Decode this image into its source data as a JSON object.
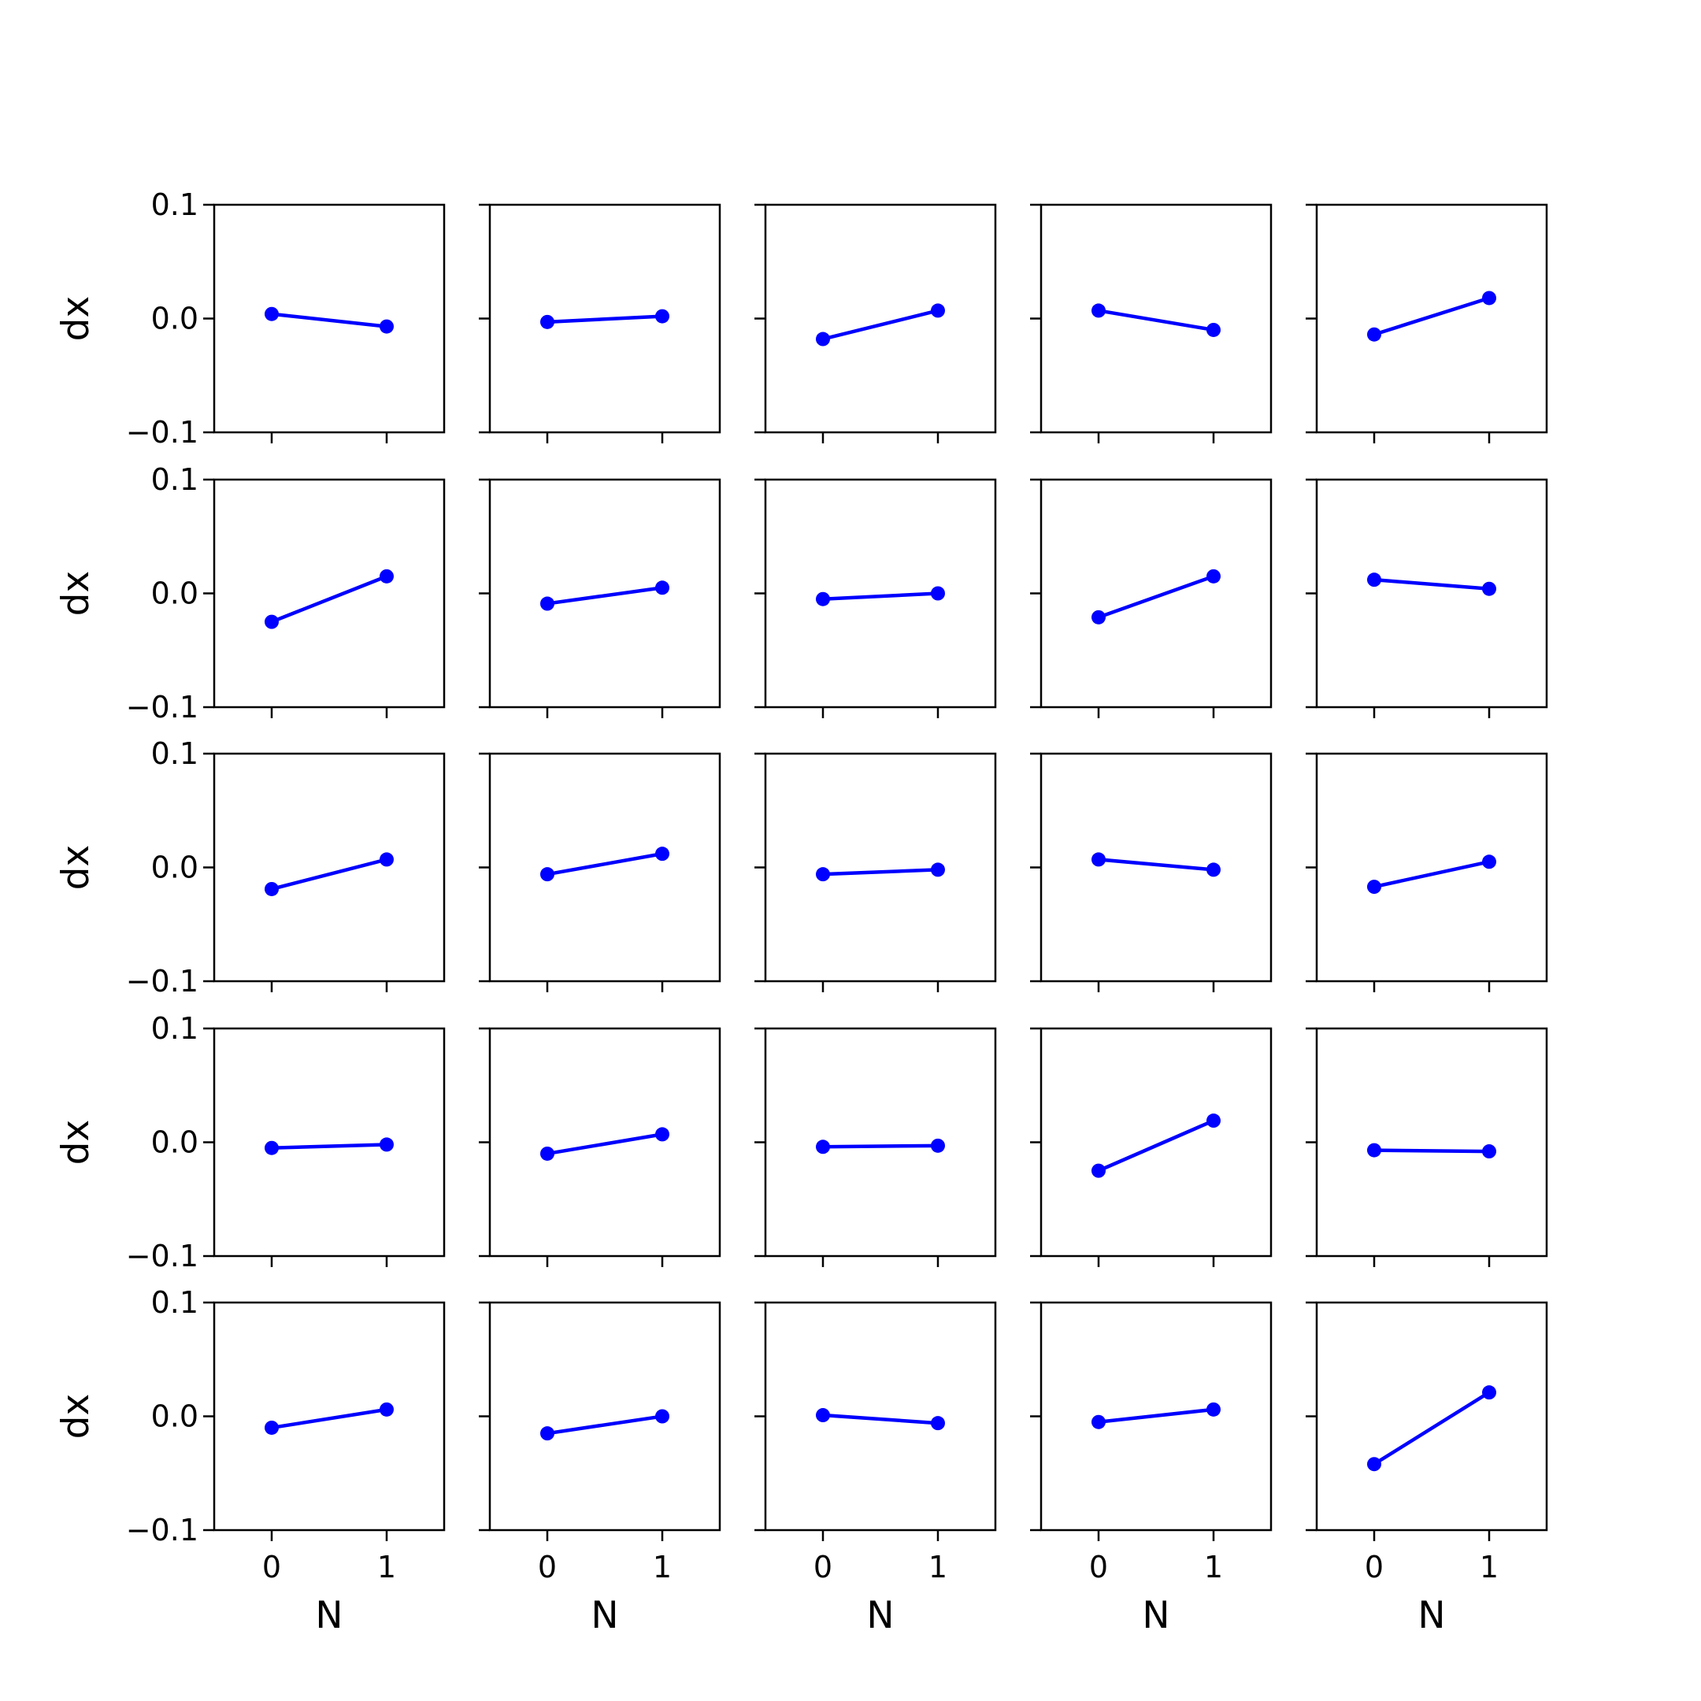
{
  "chart_data": {
    "type": "line",
    "layout": "grid",
    "rows": 5,
    "cols": 5,
    "sharex": true,
    "sharey": true,
    "xlabel": "N",
    "ylabel": "dx",
    "xlim": [
      -0.5,
      1.5
    ],
    "ylim": [
      -0.1,
      0.1
    ],
    "xticks": [
      0,
      1
    ],
    "xtick_labels": [
      "0",
      "1"
    ],
    "yticks": [
      0.1,
      0.0,
      -0.1
    ],
    "ytick_labels": [
      "0.1",
      "0.0",
      "−0.1"
    ],
    "grid": false,
    "marker": "circle",
    "line_color": "#0000ff",
    "x": [
      0,
      1
    ],
    "panels": [
      {
        "row": 0,
        "col": 0,
        "values": [
          0.004,
          -0.007
        ]
      },
      {
        "row": 0,
        "col": 1,
        "values": [
          -0.003,
          0.002
        ]
      },
      {
        "row": 0,
        "col": 2,
        "values": [
          -0.018,
          0.007
        ]
      },
      {
        "row": 0,
        "col": 3,
        "values": [
          0.007,
          -0.01
        ]
      },
      {
        "row": 0,
        "col": 4,
        "values": [
          -0.014,
          0.018
        ]
      },
      {
        "row": 1,
        "col": 0,
        "values": [
          -0.025,
          0.015
        ]
      },
      {
        "row": 1,
        "col": 1,
        "values": [
          -0.009,
          0.005
        ]
      },
      {
        "row": 1,
        "col": 2,
        "values": [
          -0.005,
          0.0
        ]
      },
      {
        "row": 1,
        "col": 3,
        "values": [
          -0.021,
          0.015
        ]
      },
      {
        "row": 1,
        "col": 4,
        "values": [
          0.012,
          0.004
        ]
      },
      {
        "row": 2,
        "col": 0,
        "values": [
          -0.019,
          0.007
        ]
      },
      {
        "row": 2,
        "col": 1,
        "values": [
          -0.006,
          0.012
        ]
      },
      {
        "row": 2,
        "col": 2,
        "values": [
          -0.006,
          -0.002
        ]
      },
      {
        "row": 2,
        "col": 3,
        "values": [
          0.007,
          -0.002
        ]
      },
      {
        "row": 2,
        "col": 4,
        "values": [
          -0.017,
          0.005
        ]
      },
      {
        "row": 3,
        "col": 0,
        "values": [
          -0.005,
          -0.002
        ]
      },
      {
        "row": 3,
        "col": 1,
        "values": [
          -0.01,
          0.007
        ]
      },
      {
        "row": 3,
        "col": 2,
        "values": [
          -0.004,
          -0.003
        ]
      },
      {
        "row": 3,
        "col": 3,
        "values": [
          -0.025,
          0.019
        ]
      },
      {
        "row": 3,
        "col": 4,
        "values": [
          -0.007,
          -0.008
        ]
      },
      {
        "row": 4,
        "col": 0,
        "values": [
          -0.01,
          0.006
        ]
      },
      {
        "row": 4,
        "col": 1,
        "values": [
          -0.015,
          0.0
        ]
      },
      {
        "row": 4,
        "col": 2,
        "values": [
          0.001,
          -0.006
        ]
      },
      {
        "row": 4,
        "col": 3,
        "values": [
          -0.005,
          0.006
        ]
      },
      {
        "row": 4,
        "col": 4,
        "values": [
          -0.042,
          0.021
        ]
      }
    ]
  }
}
